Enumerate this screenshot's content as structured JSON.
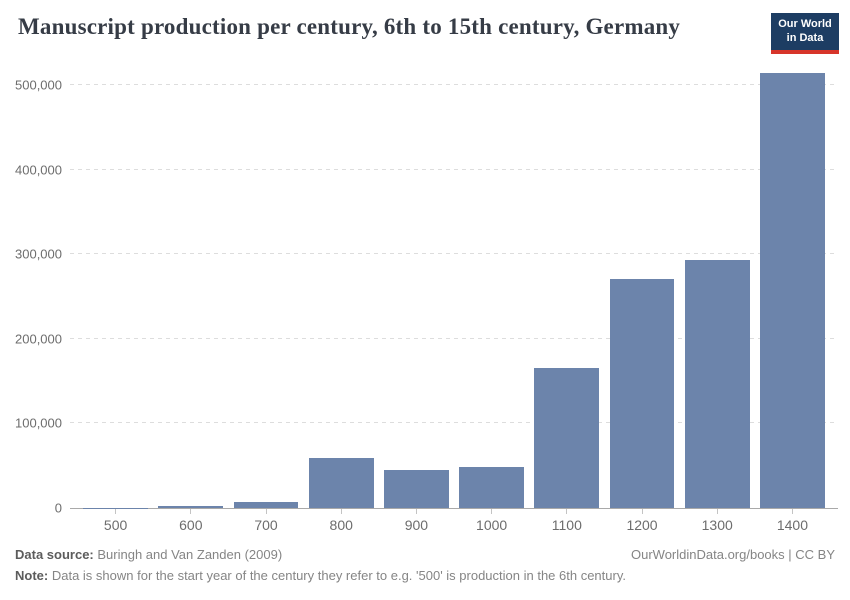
{
  "header": {
    "title": "Manuscript production per century, 6th to 15th century, Germany",
    "logo": {
      "line1": "Our World",
      "line2": "in Data"
    }
  },
  "chart_data": {
    "type": "bar",
    "title": "Manuscript production per century, 6th to 15th century, Germany",
    "categories": [
      "500",
      "600",
      "700",
      "800",
      "900",
      "1000",
      "1100",
      "1200",
      "1300",
      "1400"
    ],
    "values": [
      252,
      2358,
      7373,
      59684,
      44383,
      48892,
      166054,
      270439,
      293909,
      514168
    ],
    "xlabel": "",
    "ylabel": "",
    "ylim": [
      0,
      530000
    ],
    "yticks": [
      0,
      100000,
      200000,
      300000,
      400000,
      500000
    ],
    "ytick_labels": [
      "0",
      "100,000",
      "200,000",
      "300,000",
      "400,000",
      "500,000"
    ],
    "grid": "horizontal-dashed",
    "legend": "none",
    "bar_color": "#6c84ab"
  },
  "footer": {
    "source_label": "Data source:",
    "source_text": "Buringh and Van Zanden (2009)",
    "credit": "OurWorldinData.org/books | CC BY",
    "note_label": "Note:",
    "note_text": "Data is shown for the start year of the century they refer to e.g. '500' is production in the 6th century."
  },
  "colors": {
    "bar": "#6c84ab",
    "title": "#363c46",
    "tick_label": "#6d6d6d",
    "gridline": "#dddddd",
    "axis_line": "#a9a9a9",
    "logo_bg": "#1d3d63",
    "logo_stripe": "#d7352a",
    "footer_text": "#858585"
  }
}
